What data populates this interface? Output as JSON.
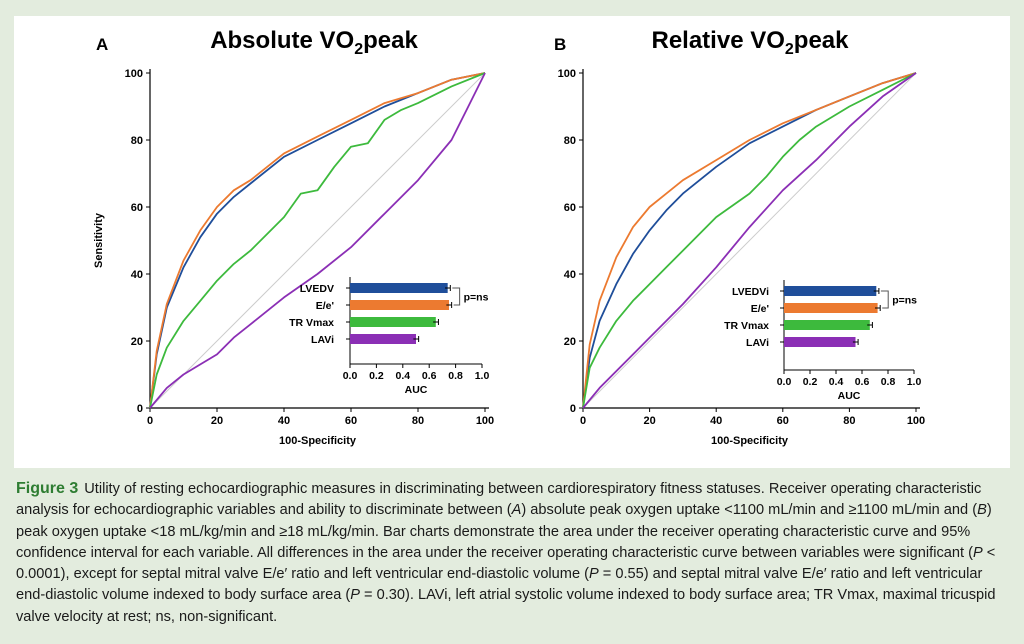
{
  "colors": {
    "page_background": "#e3ecde",
    "figure_background": "#ffffff",
    "caption_label": "#2e7d32",
    "reference_line": "#cccccc"
  },
  "caption": {
    "label": "Figure 3",
    "text_1": "Utility of resting echocardiographic measures in discriminating between cardiorespiratory fitness statuses. Receiver operating characteristic analysis for echocardiographic variables and ability to discriminate between (",
    "italic_a": "A",
    "text_2": ") absolute peak oxygen uptake <1100 mL/min and ≥1100 mL/min and (",
    "italic_b": "B",
    "text_3": ") peak oxygen uptake <18 mL/kg/min and ≥18 mL/kg/min. Bar charts demonstrate the area under the receiver operating characteristic curve and 95% confidence interval for each variable. All differences in the area under the receiver operating characteristic curve between variables were significant (",
    "italic_p1": "P",
    "text_4": " < 0.0001), except for septal mitral valve E/e′ ratio and left ventricular end-diastolic volume (",
    "italic_p2": "P",
    "text_5": " = 0.55) and septal mitral valve E/e′ ratio and left ventricular end-diastolic volume indexed to body surface area (",
    "italic_p3": "P",
    "text_6": " = 0.30). LAVi, left atrial systolic volume indexed to body surface area; TR Vmax, maximal tricuspid valve velocity at rest; ns, non-significant."
  },
  "chart_data": [
    {
      "type": "line",
      "panel_letter": "A",
      "title_main": "Absolute VO",
      "title_sub": "2",
      "title_end": "peak",
      "xlabel": "100-Specificity",
      "ylabel": "Sensitivity",
      "xlim": [
        0,
        100
      ],
      "ylim": [
        0,
        100
      ],
      "ticks": [
        0,
        20,
        40,
        60,
        80,
        100
      ],
      "tick_labels": [
        "0",
        "20",
        "40",
        "60",
        "80",
        "100"
      ],
      "reference_line": true,
      "series": [
        {
          "name": "LVEDV",
          "color": "#1f4e9a",
          "x": [
            0,
            2,
            5,
            10,
            15,
            20,
            25,
            30,
            40,
            50,
            60,
            70,
            80,
            90,
            100
          ],
          "y": [
            0,
            16,
            30,
            42,
            51,
            58,
            63,
            67,
            75,
            80,
            85,
            90,
            94,
            98,
            100
          ]
        },
        {
          "name": "E/e'",
          "color": "#ec7a30",
          "x": [
            0,
            2,
            5,
            10,
            15,
            20,
            25,
            30,
            40,
            50,
            60,
            70,
            80,
            90,
            100
          ],
          "y": [
            0,
            17,
            31,
            44,
            53,
            60,
            65,
            68,
            76,
            81,
            86,
            91,
            94,
            98,
            100
          ]
        },
        {
          "name": "TR Vmax",
          "color": "#3dba3d",
          "x": [
            0,
            2,
            5,
            10,
            15,
            20,
            25,
            30,
            40,
            45,
            50,
            55,
            60,
            65,
            70,
            75,
            80,
            90,
            100
          ],
          "y": [
            0,
            10,
            18,
            26,
            32,
            38,
            43,
            47,
            57,
            64,
            65,
            72,
            78,
            79,
            86,
            89,
            91,
            96,
            100
          ]
        },
        {
          "name": "LAVi",
          "color": "#8b2fb5",
          "x": [
            0,
            5,
            10,
            15,
            20,
            25,
            30,
            40,
            50,
            60,
            70,
            80,
            90,
            95,
            100
          ],
          "y": [
            0,
            6,
            10,
            13,
            16,
            21,
            25,
            33,
            40,
            48,
            58,
            68,
            80,
            90,
            100
          ]
        }
      ],
      "inset": {
        "type": "bar",
        "xlabel": "AUC",
        "xlim": [
          0,
          1
        ],
        "ticks": [
          0,
          0.2,
          0.4,
          0.6,
          0.8,
          1.0
        ],
        "tick_labels": [
          "0.0",
          "0.2",
          "0.4",
          "0.6",
          "0.8",
          "1.0"
        ],
        "annotation": "p=ns",
        "bars": [
          {
            "label": "LVEDV",
            "value": 0.74,
            "ci_low": 0.72,
            "ci_high": 0.76,
            "color": "#1f4e9a"
          },
          {
            "label": "E/e'",
            "value": 0.75,
            "ci_low": 0.73,
            "ci_high": 0.77,
            "color": "#ec7a30"
          },
          {
            "label": "TR Vmax",
            "value": 0.65,
            "ci_low": 0.63,
            "ci_high": 0.67,
            "color": "#3dba3d"
          },
          {
            "label": "LAVi",
            "value": 0.5,
            "ci_low": 0.48,
            "ci_high": 0.52,
            "color": "#8b2fb5"
          }
        ]
      }
    },
    {
      "type": "line",
      "panel_letter": "B",
      "title_main": "Relative VO",
      "title_sub": "2",
      "title_end": "peak",
      "xlabel": "100-Specificity",
      "ylabel": "",
      "xlim": [
        0,
        100
      ],
      "ylim": [
        0,
        100
      ],
      "ticks": [
        0,
        20,
        40,
        60,
        80,
        100
      ],
      "tick_labels": [
        "0",
        "20",
        "40",
        "60",
        "80",
        "100"
      ],
      "reference_line": true,
      "series": [
        {
          "name": "LVEDVi",
          "color": "#1f4e9a",
          "x": [
            0,
            2,
            5,
            10,
            15,
            20,
            25,
            30,
            40,
            50,
            60,
            70,
            80,
            90,
            100
          ],
          "y": [
            0,
            15,
            26,
            37,
            46,
            53,
            59,
            64,
            72,
            79,
            84,
            89,
            93,
            97,
            100
          ]
        },
        {
          "name": "E/e'",
          "color": "#ec7a30",
          "x": [
            0,
            2,
            5,
            10,
            15,
            20,
            25,
            30,
            40,
            50,
            60,
            70,
            80,
            90,
            100
          ],
          "y": [
            0,
            19,
            32,
            45,
            54,
            60,
            64,
            68,
            74,
            80,
            85,
            89,
            93,
            97,
            100
          ]
        },
        {
          "name": "TR Vmax",
          "color": "#3dba3d",
          "x": [
            0,
            2,
            5,
            10,
            15,
            20,
            25,
            30,
            40,
            50,
            55,
            60,
            65,
            70,
            80,
            90,
            100
          ],
          "y": [
            0,
            12,
            18,
            26,
            32,
            37,
            42,
            47,
            57,
            64,
            69,
            75,
            80,
            84,
            90,
            95,
            100
          ]
        },
        {
          "name": "LAVi",
          "color": "#8b2fb5",
          "x": [
            0,
            5,
            10,
            15,
            20,
            25,
            30,
            40,
            50,
            60,
            70,
            80,
            90,
            100
          ],
          "y": [
            0,
            6,
            11,
            16,
            21,
            26,
            31,
            42,
            54,
            65,
            74,
            84,
            93,
            100
          ]
        }
      ],
      "inset": {
        "type": "bar",
        "xlabel": "AUC",
        "xlim": [
          0,
          1
        ],
        "ticks": [
          0,
          0.2,
          0.4,
          0.6,
          0.8,
          1.0
        ],
        "tick_labels": [
          "0.0",
          "0.2",
          "0.4",
          "0.6",
          "0.8",
          "1.0"
        ],
        "annotation": "p=ns",
        "bars": [
          {
            "label": "LVEDVi",
            "value": 0.71,
            "ci_low": 0.69,
            "ci_high": 0.73,
            "color": "#1f4e9a"
          },
          {
            "label": "E/e'",
            "value": 0.72,
            "ci_low": 0.7,
            "ci_high": 0.74,
            "color": "#ec7a30"
          },
          {
            "label": "TR Vmax",
            "value": 0.66,
            "ci_low": 0.64,
            "ci_high": 0.68,
            "color": "#3dba3d"
          },
          {
            "label": "LAVi",
            "value": 0.55,
            "ci_low": 0.53,
            "ci_high": 0.57,
            "color": "#8b2fb5"
          }
        ]
      }
    }
  ]
}
